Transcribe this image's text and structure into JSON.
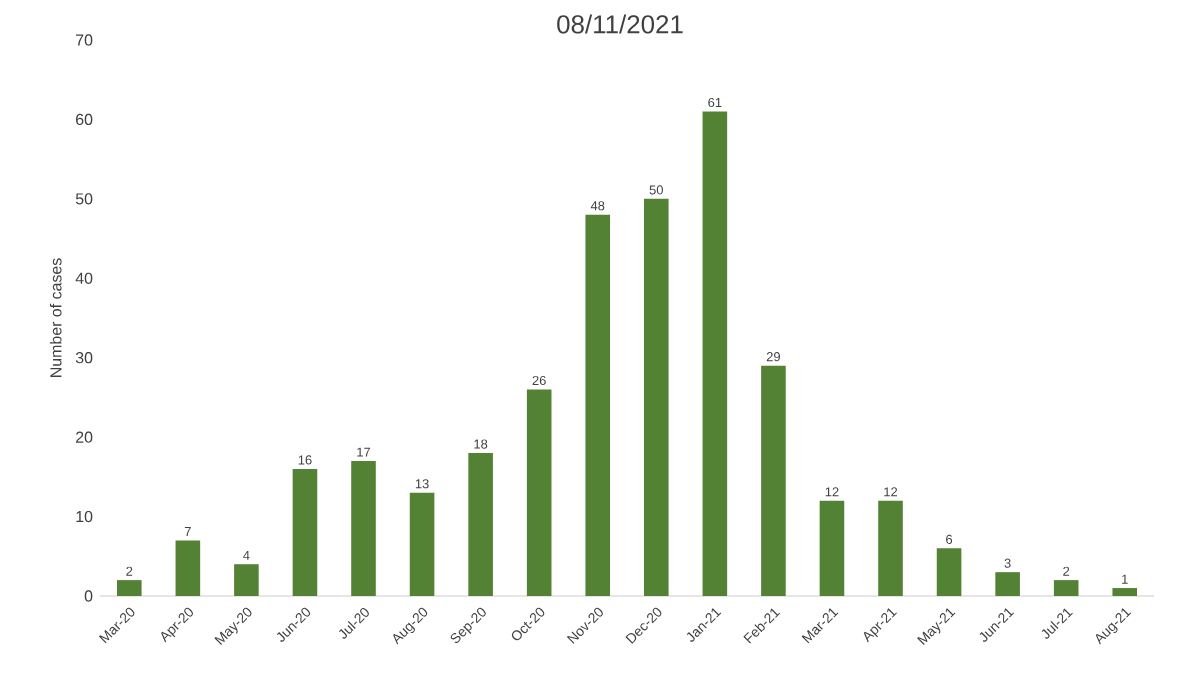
{
  "chart_data": {
    "type": "bar",
    "title": "08/11/2021",
    "ylabel": "Number of cases",
    "categories": [
      "Mar-20",
      "Apr-20",
      "May-20",
      "Jun-20",
      "Jul-20",
      "Aug-20",
      "Sep-20",
      "Oct-20",
      "Nov-20",
      "Dec-20",
      "Jan-21",
      "Feb-21",
      "Mar-21",
      "Apr-21",
      "May-21",
      "Jun-21",
      "Jul-21",
      "Aug-21"
    ],
    "values": [
      2,
      7,
      4,
      16,
      17,
      13,
      18,
      26,
      48,
      50,
      61,
      29,
      12,
      12,
      6,
      3,
      2,
      1
    ],
    "color": "#548235",
    "ylim": [
      0,
      70
    ],
    "yticks": [
      0,
      10,
      20,
      30,
      40,
      50,
      60,
      70
    ],
    "grid": false,
    "data_labels": true
  }
}
